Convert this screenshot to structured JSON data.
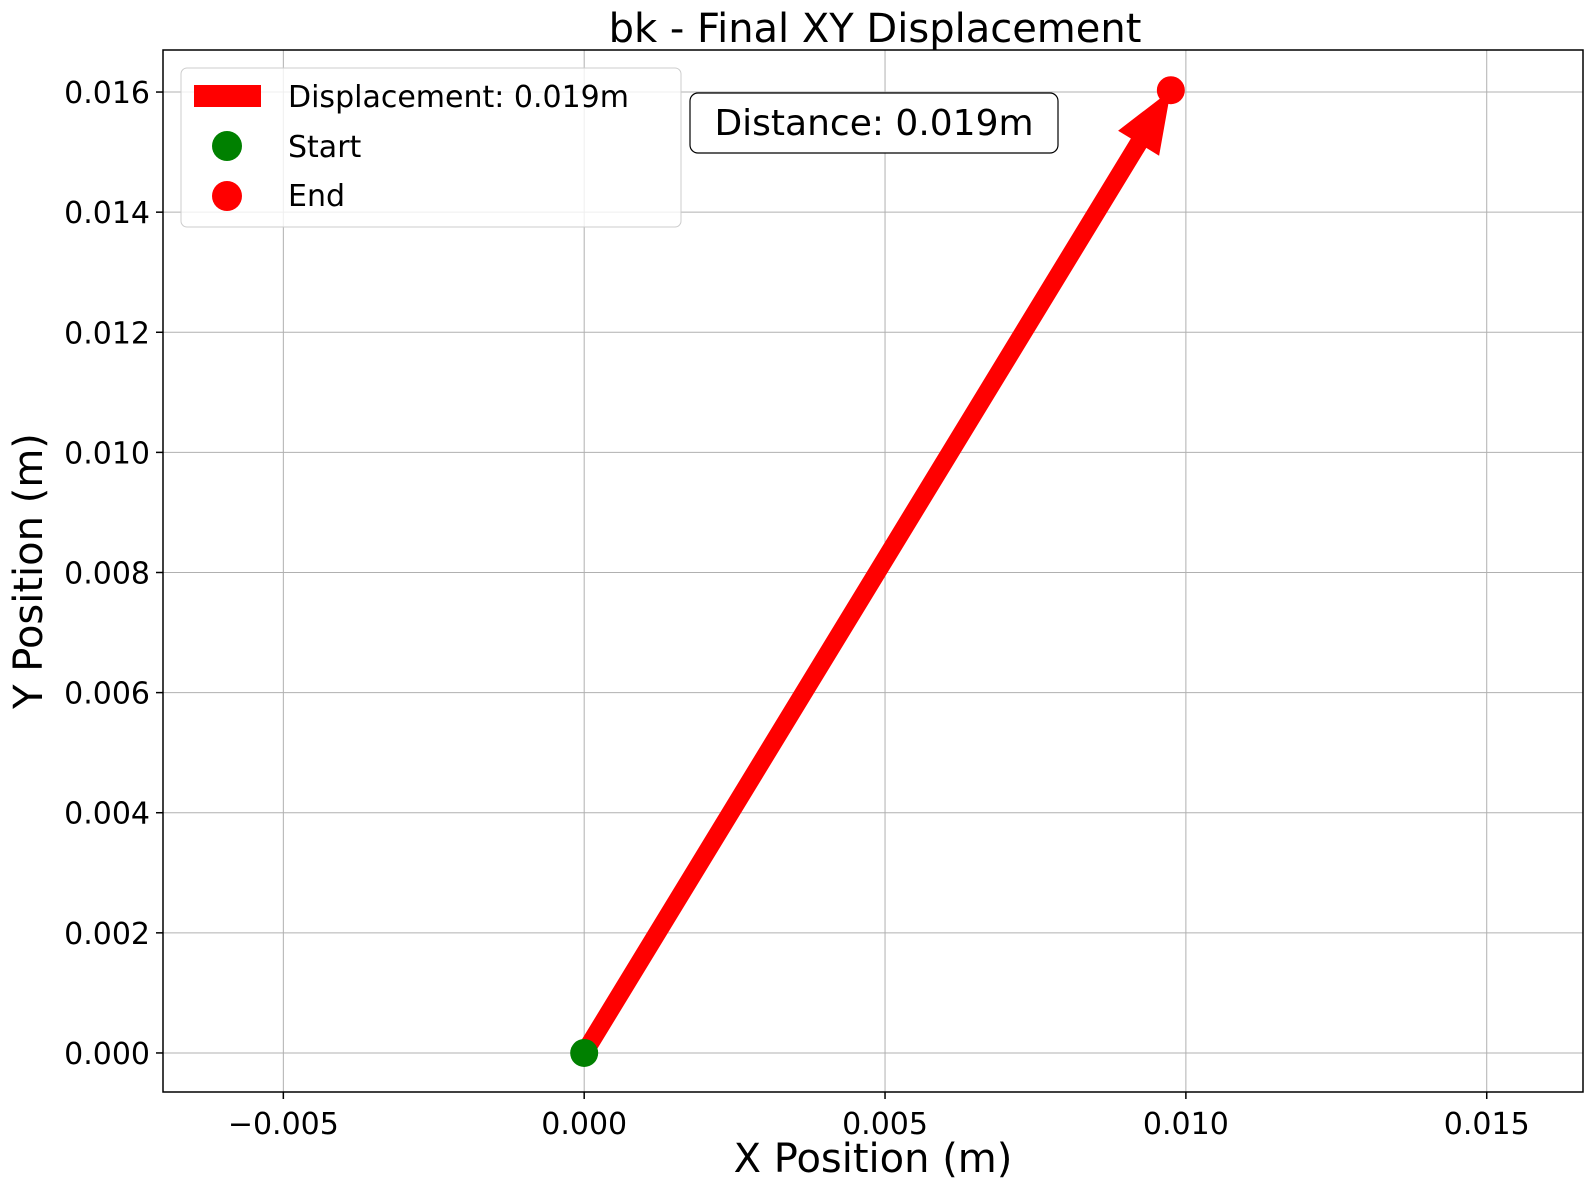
{
  "chart_data": {
    "type": "line",
    "title": "bk - Final XY Displacement",
    "xlabel": "X Position (m)",
    "ylabel": "Y Position (m)",
    "xlim": [
      -0.007,
      0.0166
    ],
    "ylim": [
      -0.00065,
      0.0167
    ],
    "xticks": [
      -0.005,
      0.0,
      0.005,
      0.01,
      0.015
    ],
    "xtick_labels": [
      "−0.005",
      "0.000",
      "0.005",
      "0.010",
      "0.015"
    ],
    "yticks": [
      0.0,
      0.002,
      0.004,
      0.006,
      0.008,
      0.01,
      0.012,
      0.014,
      0.016
    ],
    "ytick_labels": [
      "0.000",
      "0.002",
      "0.004",
      "0.006",
      "0.008",
      "0.010",
      "0.012",
      "0.014",
      "0.016"
    ],
    "grid": true,
    "legend_position": "top-left",
    "series": [
      {
        "name": "Displacement: 0.019m",
        "kind": "arrow",
        "color": "#ff0000",
        "x": [
          0.0,
          0.00975
        ],
        "y": [
          0.0,
          0.01603
        ]
      },
      {
        "name": "Start",
        "kind": "marker",
        "color": "#008000",
        "x": [
          0.0
        ],
        "y": [
          0.0
        ]
      },
      {
        "name": "End",
        "kind": "marker",
        "color": "#ff0000",
        "x": [
          0.00975
        ],
        "y": [
          0.01603
        ]
      }
    ],
    "annotations": [
      {
        "text": "Distance: 0.019m"
      }
    ]
  }
}
